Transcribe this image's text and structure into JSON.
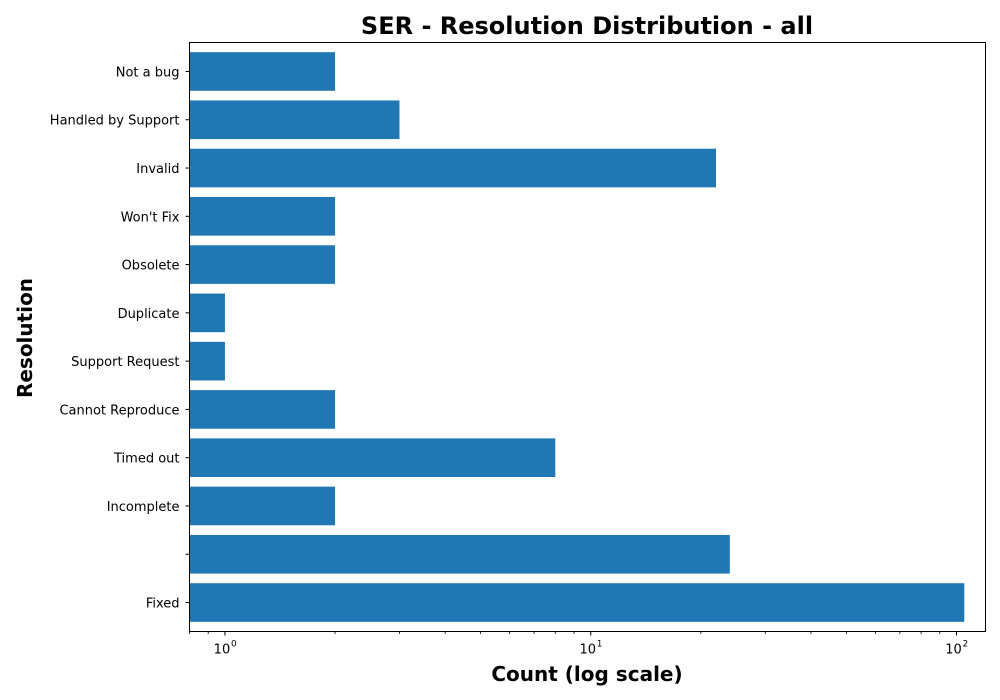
{
  "chart_data": {
    "type": "bar",
    "orientation": "horizontal",
    "title": "SER - Resolution Distribution - all",
    "xlabel": "Count (log scale)",
    "ylabel": "Resolution",
    "xscale": "log",
    "xlim": [
      0.8,
      120
    ],
    "categories": [
      "Fixed",
      "",
      "Incomplete",
      "Timed out",
      "Cannot Reproduce",
      "Support Request",
      "Duplicate",
      "Obsolete",
      "Won't Fix",
      "Invalid",
      "Handled by Support",
      "Not a bug"
    ],
    "values": [
      105,
      24,
      2,
      8,
      2,
      1,
      1,
      2,
      2,
      22,
      3,
      2
    ],
    "bar_color": "#1f77b4",
    "xticks": [
      {
        "base": "10",
        "exp": "0",
        "value": 1
      },
      {
        "base": "10",
        "exp": "1",
        "value": 10
      },
      {
        "base": "10",
        "exp": "2",
        "value": 100
      }
    ],
    "grid": false,
    "legend": "none"
  }
}
